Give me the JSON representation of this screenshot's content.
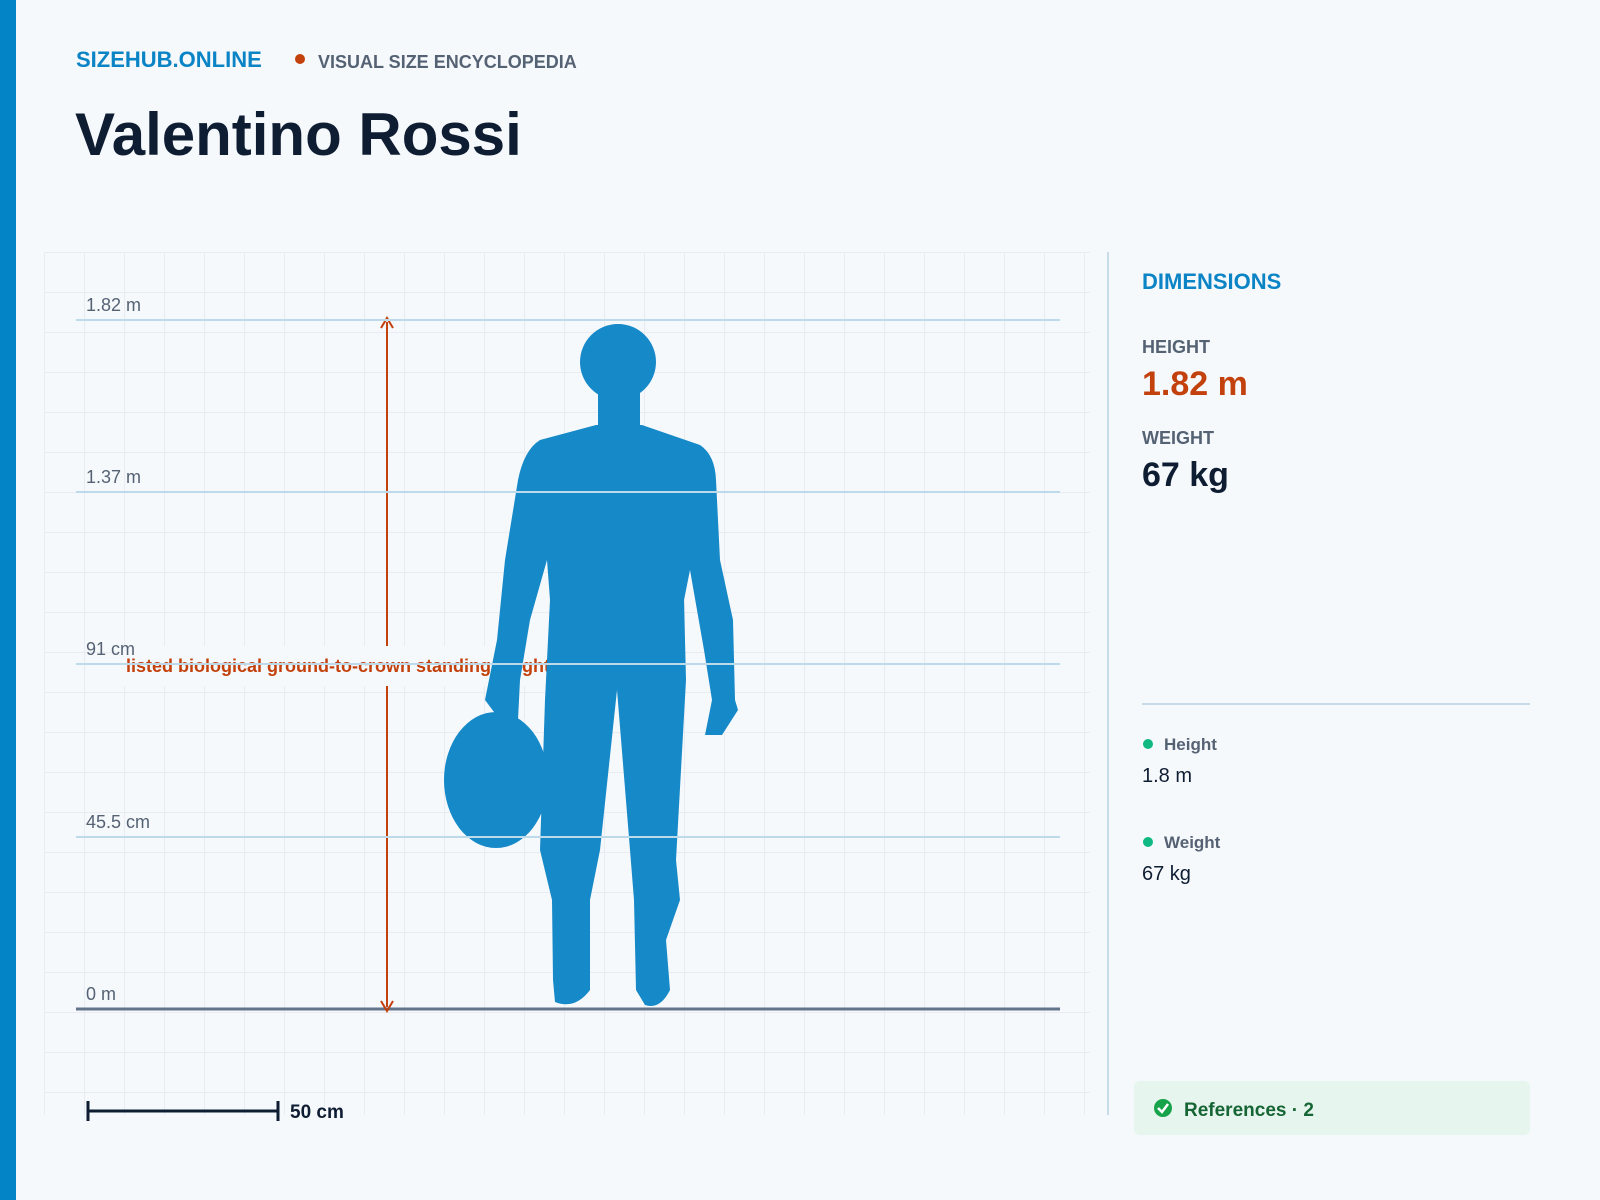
{
  "header": {
    "brand": "SIZEHUB.ONLINE",
    "tagline": "VISUAL SIZE ENCYCLOPEDIA"
  },
  "title": "Valentino Rossi",
  "figure": {
    "scale_labels": [
      "1.82 m",
      "1.37 m",
      "91 cm",
      "45.5 cm",
      "0 m"
    ],
    "annotation": "listed biological ground-to-crown standing height",
    "scale_bar": "50 cm"
  },
  "panel": {
    "heading": "DIMENSIONS",
    "stats": [
      {
        "label": "HEIGHT",
        "value": "1.82 m"
      },
      {
        "label": "WEIGHT",
        "value": "67 kg"
      }
    ],
    "facts": [
      {
        "label": "Height",
        "value": "1.8 m"
      },
      {
        "label": "Weight",
        "value": "67 kg"
      }
    ],
    "references": "References · 2"
  }
}
